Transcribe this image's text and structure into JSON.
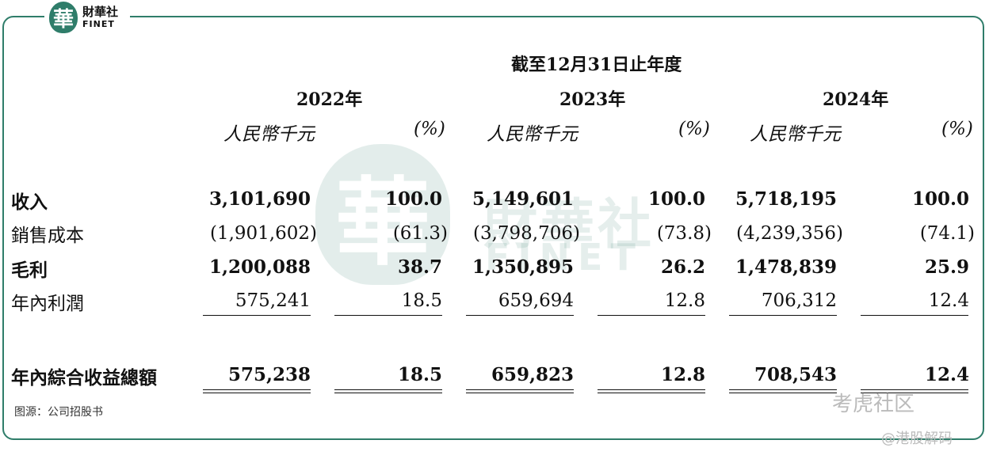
{
  "logo": {
    "mark": "華",
    "cn": "財華社",
    "en": "FINET"
  },
  "watermark": {
    "mark": "華",
    "cn": "財華社",
    "en": "FINET",
    "corner1": "考虎社区",
    "corner2": "@港股解码"
  },
  "table": {
    "period_header": "截至12月31日止年度",
    "years": [
      "2022年",
      "2023年",
      "2024年"
    ],
    "unit_label": "人民幣千元",
    "pct_label": "(%)",
    "rows": [
      {
        "label": "收入",
        "values": [
          "3,101,690",
          "100.0",
          "5,149,601",
          "100.0",
          "5,718,195",
          "100.0"
        ]
      },
      {
        "label": "銷售成本",
        "values": [
          "(1,901,602)",
          "(61.3)",
          "(3,798,706)",
          "(73.8)",
          "(4,239,356)",
          "(74.1)"
        ]
      },
      {
        "label": "毛利",
        "values": [
          "1,200,088",
          "38.7",
          "1,350,895",
          "26.2",
          "1,478,839",
          "25.9"
        ]
      },
      {
        "label": "年內利潤",
        "values": [
          "575,241",
          "18.5",
          "659,694",
          "12.8",
          "706,312",
          "12.4"
        ]
      },
      {
        "label": "年內綜合收益總額",
        "values": [
          "575,238",
          "18.5",
          "659,823",
          "12.8",
          "708,543",
          "12.4"
        ]
      }
    ]
  },
  "source": "图源：公司招股书"
}
